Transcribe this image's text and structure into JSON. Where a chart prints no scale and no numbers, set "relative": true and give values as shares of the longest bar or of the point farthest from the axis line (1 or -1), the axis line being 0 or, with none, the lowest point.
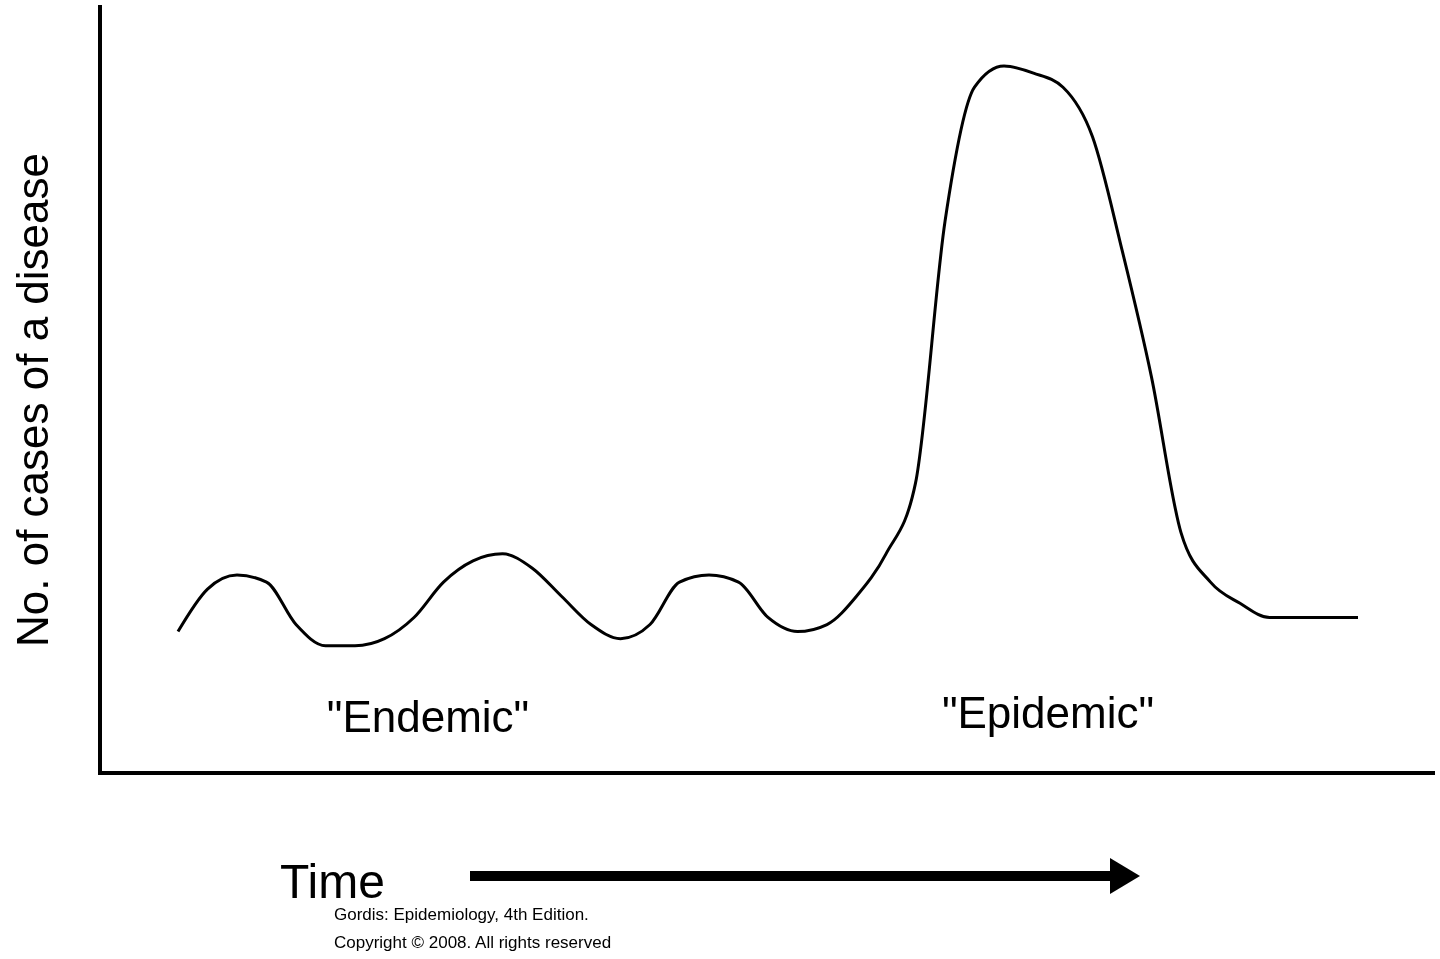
{
  "chart_data": {
    "type": "line",
    "relative": true,
    "xlabel": "Time",
    "ylabel": "No. of cases of a disease",
    "categories": [
      null,
      null,
      null,
      null,
      null,
      null,
      null,
      null,
      null,
      null,
      null,
      null,
      null,
      null,
      null,
      null,
      null,
      null,
      null,
      null,
      null,
      null,
      null,
      null,
      null,
      null,
      null,
      null,
      null,
      null,
      null,
      null,
      null,
      null,
      null,
      null,
      null,
      null,
      null,
      null,
      null
    ],
    "series": [
      {
        "color": "#000000",
        "values": [
          0.2,
          0.26,
          0.28,
          0.27,
          0.21,
          0.18,
          0.18,
          0.19,
          0.22,
          0.27,
          0.3,
          0.31,
          0.29,
          0.25,
          0.21,
          0.19,
          0.21,
          0.27,
          0.28,
          0.27,
          0.22,
          0.2,
          0.21,
          0.25,
          0.31,
          0.41,
          0.78,
          0.97,
          1.0,
          0.99,
          0.97,
          0.9,
          0.74,
          0.56,
          0.34,
          0.27,
          0.24,
          0.22,
          0.22,
          0.22,
          0.22
        ]
      }
    ],
    "annotations": [
      "\"Endemic\"",
      "\"Epidemic\"",
      "Gordis: Epidemiology, 4th Edition.",
      "Copyright © 2008. All rights reserved"
    ],
    "line_style": "solid"
  }
}
